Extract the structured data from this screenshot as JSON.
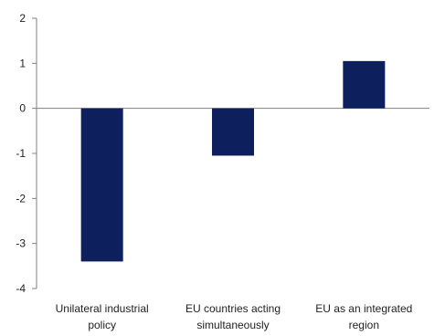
{
  "chart_data": {
    "type": "bar",
    "title": "",
    "xlabel": "",
    "ylabel": "",
    "categories": [
      [
        "Unilateral industrial",
        "policy"
      ],
      [
        "EU countries acting",
        "simultaneously"
      ],
      [
        "EU as an integrated",
        "region"
      ]
    ],
    "values": [
      -3.4,
      -1.05,
      1.05
    ],
    "ylim": [
      -4,
      2
    ],
    "yticks": [
      2,
      1,
      0,
      -1,
      -2,
      -3,
      -4
    ],
    "grid": false,
    "legend": "none",
    "bar_color": "#0d1f5c",
    "axis_color": "#808080"
  }
}
